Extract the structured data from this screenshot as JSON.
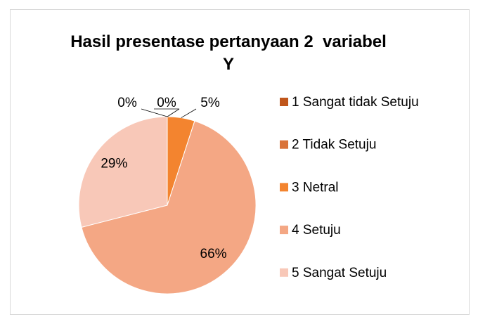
{
  "chart_data": {
    "type": "pie",
    "title": "Hasil presentase pertanyaan 2  variabel Y",
    "categories": [
      "1 Sangat tidak Setuju",
      "2 Tidak Setuju",
      "3 Netral",
      "4 Setuju",
      "5 Sangat Setuju"
    ],
    "values": [
      0,
      0,
      5,
      66,
      29
    ],
    "value_labels": [
      "0%",
      "0%",
      "5%",
      "66%",
      "29%"
    ],
    "colors": [
      "#c0561b",
      "#d9733a",
      "#f3842f",
      "#f4a784",
      "#f8c8b8"
    ],
    "legend": "right"
  }
}
